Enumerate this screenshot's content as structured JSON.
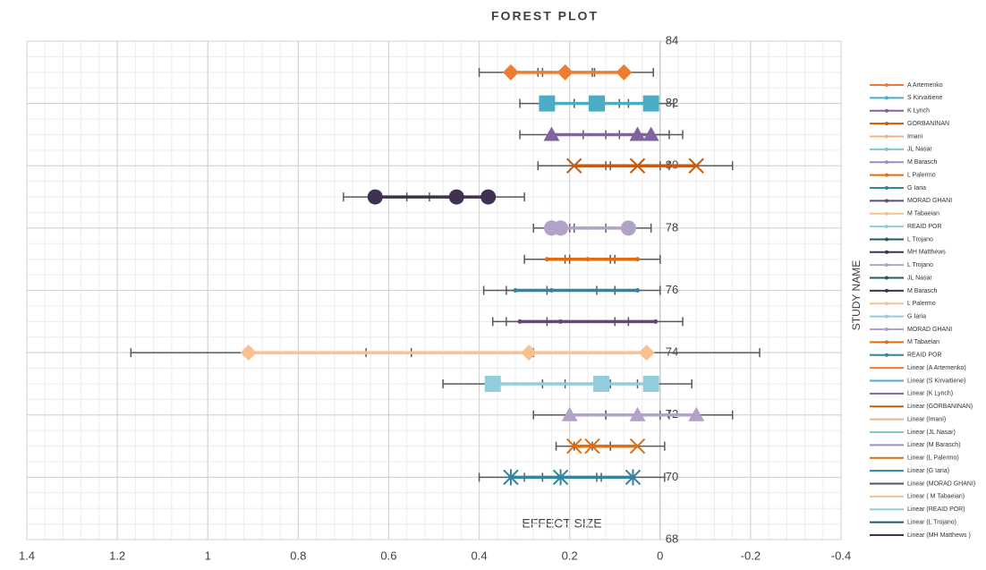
{
  "chart_data": {
    "type": "scatter",
    "title": "FOREST PLOT",
    "x_label": "EFFECT SIZE",
    "y_label": "STUDY NAME",
    "xlim": [
      1.4,
      -0.4
    ],
    "xticks": [
      1.4,
      1.2,
      1,
      0.8,
      0.6,
      0.4,
      0.2,
      0,
      -0.2,
      -0.4
    ],
    "ylim": [
      68,
      84
    ],
    "yticks": [
      68,
      70,
      72,
      74,
      76,
      78,
      80,
      82,
      84
    ],
    "grid": true,
    "legend": "right",
    "error_bar_color": "#595959",
    "series": [
      {
        "name": "A Artemenko",
        "color": "#ed7d31",
        "marker": "diamond",
        "x": [
          0.33,
          0.21,
          0.08
        ],
        "y": [
          83,
          83,
          83
        ],
        "xerr": [
          0.07,
          0.06,
          0.065
        ]
      },
      {
        "name": "S Kirvaitiene",
        "color": "#4bacc6",
        "marker": "square",
        "x": [
          0.25,
          0.14,
          0.02
        ],
        "y": [
          82,
          82,
          82
        ],
        "xerr": [
          0.06,
          0.05,
          0.05
        ]
      },
      {
        "name": "K Lynch",
        "color": "#8064a2",
        "marker": "triangle",
        "x": [
          0.24,
          0.05,
          0.02
        ],
        "y": [
          81,
          81,
          81
        ],
        "xerr": [
          0.07,
          0.07,
          0.07
        ]
      },
      {
        "name": "GORBANINAN",
        "color": "#c55a11",
        "marker": "x",
        "x": [
          0.19,
          0.05,
          -0.08
        ],
        "y": [
          80,
          80,
          80
        ],
        "xerr": [
          0.08,
          0.07,
          0.08
        ]
      },
      {
        "name": "Imani",
        "color": "#f4b183",
        "marker": "dot",
        "x": [],
        "y": [],
        "xerr": []
      },
      {
        "name": "JL Nasar",
        "color": "#7fc4d6",
        "marker": "dot",
        "x": [],
        "y": [],
        "xerr": []
      },
      {
        "name": "M Barasch",
        "color": "#a08cbd",
        "marker": "dot",
        "x": [],
        "y": [],
        "xerr": []
      },
      {
        "name": "L Palermo",
        "color": "#e46c0a",
        "marker": "dot",
        "x": [
          0.25,
          0.16,
          0.05
        ],
        "y": [
          77,
          77,
          77
        ],
        "xerr": [
          0.05,
          0.05,
          0.05
        ]
      },
      {
        "name": "G Iaria",
        "color": "#31859c",
        "marker": "dot",
        "x": [
          0.32,
          0.24,
          0.05
        ],
        "y": [
          76,
          76,
          76
        ],
        "xerr": [
          0.07,
          0.1,
          0.05
        ]
      },
      {
        "name": "MORAD GHANI",
        "color": "#5f497a",
        "marker": "dot",
        "x": [
          0.31,
          0.22,
          0.01
        ],
        "y": [
          75,
          75,
          75
        ],
        "xerr": [
          0.06,
          0.12,
          0.06
        ]
      },
      {
        "name": " M Tabaeian",
        "color": "#fac090",
        "marker": "dot",
        "x": [],
        "y": [],
        "xerr": []
      },
      {
        "name": "REAID POR",
        "color": "#93cddd",
        "marker": "dot",
        "x": [],
        "y": [],
        "xerr": []
      },
      {
        "name": "L Trojano",
        "color": "#215968",
        "marker": "dot",
        "x": [],
        "y": [],
        "xerr": []
      },
      {
        "name": "MH Matthews",
        "color": "#403152",
        "marker": "circle",
        "x": [
          0.63,
          0.45,
          0.38
        ],
        "y": [
          79,
          79,
          79
        ],
        "xerr": [
          0.07,
          0.06,
          0.08
        ]
      },
      {
        "name": "L Trojano",
        "color": "#b3a2c7",
        "marker": "circle",
        "x": [
          0.24,
          0.22,
          0.07
        ],
        "y": [
          78,
          78,
          78
        ],
        "xerr": [
          0.04,
          0.03,
          0.05
        ]
      },
      {
        "name": "JL Nasar",
        "color": "#215968",
        "marker": "dot",
        "x": [],
        "y": [],
        "xerr": []
      },
      {
        "name": "M Barasch",
        "color": "#403152",
        "marker": "dot",
        "x": [],
        "y": [],
        "xerr": []
      },
      {
        "name": "L Palermo",
        "color": "#fac090",
        "marker": "diamond",
        "x": [
          0.91,
          0.29,
          0.03
        ],
        "y": [
          74,
          74,
          74
        ],
        "xerr": [
          0.26,
          0.26,
          0.25
        ]
      },
      {
        "name": "G Iaria",
        "color": "#93cddd",
        "marker": "square",
        "x": [
          0.37,
          0.13,
          0.02
        ],
        "y": [
          73,
          73,
          73
        ],
        "xerr": [
          0.11,
          0.08,
          0.09
        ]
      },
      {
        "name": "MORAD GHANI",
        "color": "#b3a2c7",
        "marker": "triangle",
        "x": [
          0.2,
          0.05,
          -0.08
        ],
        "y": [
          72,
          72,
          72
        ],
        "xerr": [
          0.08,
          0.07,
          0.08
        ]
      },
      {
        "name": " M Tabaeian",
        "color": "#e46c0a",
        "marker": "x",
        "x": [
          0.19,
          0.15,
          0.05
        ],
        "y": [
          71,
          71,
          71
        ],
        "xerr": [
          0.04,
          0.04,
          0.06
        ]
      },
      {
        "name": "REAID POR",
        "color": "#31859c",
        "marker": "star",
        "x": [
          0.33,
          0.22,
          0.06
        ],
        "y": [
          70,
          70,
          70
        ],
        "xerr": [
          0.07,
          0.08,
          0.07
        ]
      }
    ],
    "trendlines": [
      {
        "name": "Linear (A Artemenko)",
        "color": "#ed7d31"
      },
      {
        "name": "Linear (S Kirvaitiene)",
        "color": "#4bacc6"
      },
      {
        "name": "Linear (K Lynch)",
        "color": "#8064a2"
      },
      {
        "name": "Linear (GORBANINAN)",
        "color": "#c55a11"
      },
      {
        "name": "Linear (Imani)",
        "color": "#f4b183"
      },
      {
        "name": "Linear (JL Nasar)",
        "color": "#7fc4d6"
      },
      {
        "name": "Linear (M Barasch)",
        "color": "#a08cbd"
      },
      {
        "name": "Linear (L Palermo)",
        "color": "#e46c0a"
      },
      {
        "name": "Linear (G Iaria)",
        "color": "#31859c"
      },
      {
        "name": "Linear (MORAD GHANI)",
        "color": "#5f497a"
      },
      {
        "name": "Linear ( M Tabaeian)",
        "color": "#fac090"
      },
      {
        "name": "Linear (REAID POR)",
        "color": "#93cddd"
      },
      {
        "name": "Linear (L Trojano)",
        "color": "#215968"
      },
      {
        "name": "Linear (MH Matthews )",
        "color": "#403152"
      }
    ]
  }
}
